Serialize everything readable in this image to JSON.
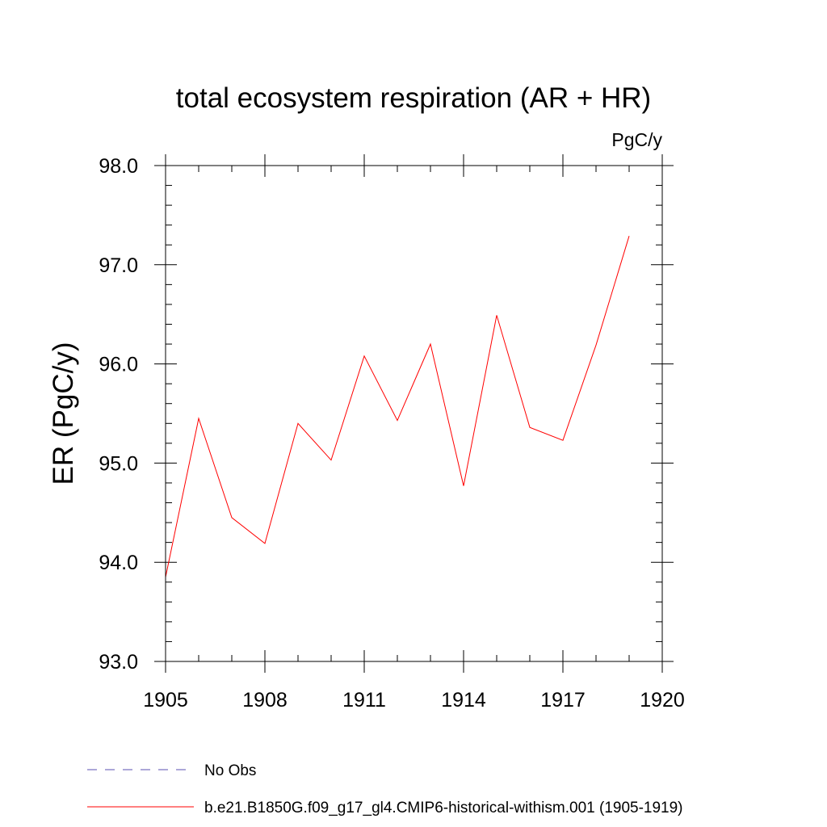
{
  "chart_data": {
    "type": "line",
    "title": "total ecosystem respiration (AR + HR)",
    "units": "PgC/y",
    "ylabel": "ER  (PgC/y)",
    "xlabel": "",
    "xlim": [
      1905,
      1920
    ],
    "ylim": [
      93.0,
      98.0
    ],
    "xticks": [
      1905,
      1908,
      1911,
      1914,
      1917,
      1920
    ],
    "xtick_labels": [
      "1905",
      "1908",
      "1911",
      "1914",
      "1917",
      "1920"
    ],
    "yticks": [
      93.0,
      94.0,
      95.0,
      96.0,
      97.0,
      98.0
    ],
    "ytick_labels": [
      "93.0",
      "94.0",
      "95.0",
      "96.0",
      "97.0",
      "98.0"
    ],
    "x_minor_step": 1,
    "y_minor_step": 0.2,
    "grid": false,
    "legend_position": "bottom",
    "series": [
      {
        "name": "No Obs",
        "color": "#5a4fb0",
        "dashed": true,
        "x": [],
        "values": []
      },
      {
        "name": "b.e21.B1850G.f09_g17_gl4.CMIP6-historical-withism.001 (1905-1919)",
        "color": "#ff0000",
        "dashed": false,
        "x": [
          1905,
          1906,
          1907,
          1908,
          1909,
          1910,
          1911,
          1912,
          1913,
          1914,
          1915,
          1916,
          1917,
          1918,
          1919
        ],
        "values": [
          93.85,
          95.45,
          94.45,
          94.19,
          95.4,
          95.03,
          96.08,
          95.43,
          96.2,
          94.77,
          96.49,
          95.36,
          95.23,
          96.19,
          97.29
        ]
      }
    ]
  }
}
